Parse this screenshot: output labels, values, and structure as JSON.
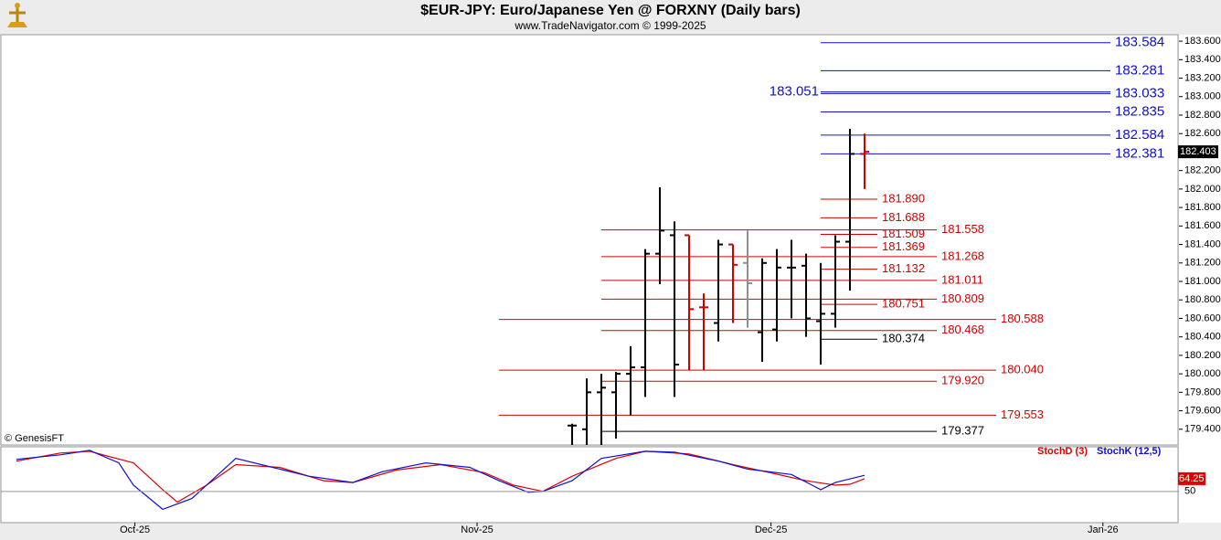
{
  "chart_data": {
    "type": "ohlc",
    "title": "$EUR-JPY:  Euro/Japanese Yen @ FORXNY  (Daily bars)",
    "subtitle": "www.TradeNavigator.com © 1999-2025",
    "watermark": "© GenesisFT",
    "xlim": [
      0,
      80.5
    ],
    "xticks": [
      {
        "value": 9.1,
        "label": "Oct-25"
      },
      {
        "value": 32.5,
        "label": "Nov-25"
      },
      {
        "value": 52.6,
        "label": "Dec-25"
      },
      {
        "value": 75.3,
        "label": "Jan-26"
      }
    ],
    "ylim": [
      179.23,
      183.67
    ],
    "yticks": [
      {
        "value": 179.4,
        "label": "179.400"
      },
      {
        "value": 179.6,
        "label": "179.600"
      },
      {
        "value": 179.8,
        "label": "179.800"
      },
      {
        "value": 180.0,
        "label": "180.000"
      },
      {
        "value": 180.2,
        "label": "180.200"
      },
      {
        "value": 180.4,
        "label": "180.400"
      },
      {
        "value": 180.6,
        "label": "180.600"
      },
      {
        "value": 180.8,
        "label": "180.800"
      },
      {
        "value": 181.0,
        "label": "181.000"
      },
      {
        "value": 181.2,
        "label": "181.200"
      },
      {
        "value": 181.4,
        "label": "181.400"
      },
      {
        "value": 181.6,
        "label": "181.600"
      },
      {
        "value": 181.8,
        "label": "181.800"
      },
      {
        "value": 182.0,
        "label": "182.000"
      },
      {
        "value": 182.2,
        "label": "182.200"
      },
      {
        "value": 182.6,
        "label": "182.600"
      },
      {
        "value": 182.8,
        "label": "182.800"
      },
      {
        "value": 183.0,
        "label": "183.000"
      },
      {
        "value": 183.2,
        "label": "183.200"
      },
      {
        "value": 183.4,
        "label": "183.400"
      },
      {
        "value": 183.6,
        "label": "183.600"
      }
    ],
    "last_price": {
      "value": 182.403,
      "label": "182.403"
    },
    "x": [
      39,
      40,
      41,
      42,
      43,
      44,
      45,
      46,
      47,
      48,
      49,
      50,
      51,
      52,
      53,
      54,
      55,
      56,
      57,
      58,
      59
    ],
    "open": [
      179.44,
      179.4,
      179.8,
      179.8,
      180.0,
      180.07,
      181.3,
      181.5,
      181.5,
      180.72,
      180.55,
      181.4,
      181.2,
      180.45,
      180.48,
      181.15,
      181.17,
      180.57,
      180.65,
      181.43,
      182.38
    ],
    "high": [
      179.46,
      179.95,
      180.0,
      180.02,
      180.3,
      181.35,
      182.02,
      181.65,
      181.5,
      180.87,
      181.45,
      181.4,
      181.55,
      181.25,
      181.35,
      181.45,
      181.3,
      181.2,
      181.5,
      182.65,
      182.6
    ],
    "low": [
      179.2,
      179.2,
      179.2,
      179.3,
      179.55,
      179.75,
      180.97,
      179.75,
      180.04,
      180.04,
      180.35,
      180.55,
      180.5,
      180.13,
      180.35,
      180.6,
      180.4,
      180.1,
      180.5,
      180.9,
      182.0
    ],
    "close": [
      179.44,
      179.8,
      179.85,
      180.0,
      180.07,
      181.3,
      181.55,
      180.1,
      180.7,
      180.72,
      181.4,
      181.18,
      180.98,
      181.2,
      181.15,
      181.15,
      180.6,
      180.65,
      181.43,
      182.38,
      182.403
    ],
    "colors": [
      "#000",
      "#000",
      "#000",
      "#000",
      "#000",
      "#000",
      "#000",
      "#000",
      "#d00000",
      "#d00000",
      "#000",
      "#d00000",
      "#909090",
      "#000",
      "#000",
      "#000",
      "#000",
      "#000",
      "#000",
      "#000",
      "#d00000"
    ],
    "levels_top": [
      {
        "value": 183.584,
        "label": "183.584"
      },
      {
        "value": 183.281,
        "label": "183.281"
      },
      {
        "value": 183.033,
        "label": "183.033"
      },
      {
        "value": 182.835,
        "label": "182.835"
      },
      {
        "value": 182.584,
        "label": "182.584"
      },
      {
        "value": 182.381,
        "label": "182.381"
      }
    ],
    "levels_top_left": [
      {
        "value": 183.051,
        "label": "183.051"
      }
    ],
    "levels_top_color": "#1010d0",
    "levels_near": [
      {
        "value": 181.89,
        "label": "181.890",
        "color": "#d00000"
      },
      {
        "value": 181.688,
        "label": "181.688",
        "color": "#d00000"
      },
      {
        "value": 181.509,
        "label": "181.509",
        "color": "#d00000"
      },
      {
        "value": 181.369,
        "label": "181.369",
        "color": "#d00000"
      },
      {
        "value": 181.132,
        "label": "181.132",
        "color": "#d00000"
      },
      {
        "value": 180.751,
        "label": "180.751",
        "color": "#d00000"
      },
      {
        "value": 180.374,
        "label": "180.374",
        "color": "#000000"
      }
    ],
    "levels_mid": [
      {
        "value": 181.558,
        "label": "181.558",
        "color": "#d00000"
      },
      {
        "value": 181.268,
        "label": "181.268",
        "color": "#d00000"
      },
      {
        "value": 181.011,
        "label": "181.011",
        "color": "#d00000"
      },
      {
        "value": 180.809,
        "label": "180.809",
        "color": "#d00000"
      },
      {
        "value": 180.468,
        "label": "180.468",
        "color": "#d00000"
      },
      {
        "value": 179.92,
        "label": "179.920",
        "color": "#d00000"
      },
      {
        "value": 179.377,
        "label": "179.377",
        "color": "#000000"
      }
    ],
    "levels_far": [
      {
        "value": 180.588,
        "label": "180.588",
        "color": "#d00000"
      },
      {
        "value": 180.04,
        "label": "180.040",
        "color": "#d00000"
      },
      {
        "value": 179.553,
        "label": "179.553",
        "color": "#d00000"
      }
    ],
    "indicator": {
      "ylim": [
        15,
        100
      ],
      "yticks": [
        50
      ],
      "series": [
        {
          "name": "StochD (3)",
          "color": "#e00000",
          "value_labels_last": "64.25",
          "x": [
            1,
            4,
            6,
            9,
            11,
            12,
            14,
            16,
            19,
            22,
            24,
            27,
            30,
            33,
            35,
            37,
            39,
            42,
            44,
            47,
            50,
            52,
            55,
            57,
            58,
            59
          ],
          "values": [
            84,
            93,
            95,
            82,
            52,
            38,
            57,
            80,
            77,
            62,
            60,
            74,
            80,
            71,
            57,
            50,
            67,
            87,
            95,
            92,
            80,
            73,
            62,
            57,
            58,
            64.25
          ]
        },
        {
          "name": "StochK (12,5)",
          "color": "#1010d0",
          "x": [
            1,
            4,
            6,
            8,
            9,
            11,
            13,
            15,
            16,
            18,
            21,
            24,
            26,
            29,
            32,
            34,
            36,
            37,
            39,
            41,
            44,
            46,
            49,
            51,
            54,
            56,
            57,
            59
          ],
          "values": [
            86,
            91,
            96,
            82,
            57,
            30,
            42,
            72,
            87,
            79,
            67,
            60,
            72,
            82,
            77,
            62,
            49,
            50,
            62,
            87,
            95,
            94,
            84,
            75,
            69,
            52,
            60,
            68
          ]
        }
      ]
    }
  }
}
